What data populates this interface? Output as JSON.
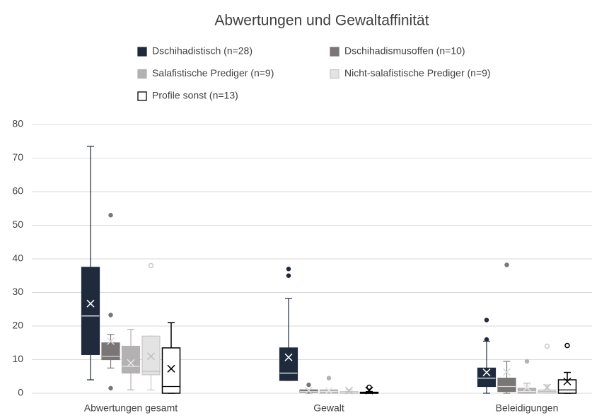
{
  "chart_data": {
    "type": "box",
    "title": "Abwertungen und Gewaltaffinität",
    "categories": [
      "Abwertungen gesamt",
      "Gewalt",
      "Beleidigungen"
    ],
    "ylim": [
      0,
      80
    ],
    "yticks": [
      0,
      10,
      20,
      30,
      40,
      50,
      60,
      70,
      80
    ],
    "grid": true,
    "series": [
      {
        "name": "Dschihadistisch (n=28)",
        "color": "#1f2a3d",
        "edge_color": "#1f2a3d",
        "inner_color": "#ffffff",
        "low": [
          4,
          3.8,
          0
        ],
        "q1": [
          11.5,
          3.8,
          2
        ],
        "median": [
          23,
          6,
          4.5
        ],
        "q3": [
          37.5,
          13.5,
          7.5
        ],
        "high": [
          73.5,
          28.2,
          15.5
        ],
        "mean": [
          26.7,
          10.7,
          6.2
        ],
        "outliers": [
          [],
          [
            35,
            37
          ],
          [
            16,
            21.8
          ]
        ]
      },
      {
        "name": "Dschihadismusoffen (n=10)",
        "color": "#7b7676",
        "edge_color": "#7b7676",
        "inner_color": "#d9d9d9",
        "low": [
          7.5,
          0,
          0
        ],
        "q1": [
          10,
          0.3,
          0.5
        ],
        "median": [
          11,
          0.5,
          2
        ],
        "q3": [
          15,
          1,
          4.5
        ],
        "high": [
          17.5,
          1,
          9.5
        ],
        "mean": [
          15.5,
          0.8,
          6.3
        ],
        "outliers": [
          [
            1.5,
            23.3,
            53
          ],
          [
            2.5
          ],
          [
            38.2
          ]
        ]
      },
      {
        "name": "Salafistische Prediger (n=9)",
        "color": "#b3b1b1",
        "edge_color": "#b3b1b1",
        "inner_color": "#e8e8e8",
        "low": [
          1,
          0,
          0
        ],
        "q1": [
          6,
          0,
          0
        ],
        "median": [
          8,
          0.5,
          0.5
        ],
        "q3": [
          14,
          1,
          1.5
        ],
        "high": [
          19,
          1,
          3
        ],
        "mean": [
          9,
          0.8,
          1.7
        ],
        "outliers": [
          [],
          [
            4.5
          ],
          [
            9.5
          ]
        ]
      },
      {
        "name": "Nicht-salafistische Prediger (n=9)",
        "color": "#e3e3e3",
        "edge_color": "#c8c8c8",
        "inner_color": "#c0c0c0",
        "low": [
          1,
          0,
          0
        ],
        "q1": [
          5.5,
          0,
          0
        ],
        "median": [
          6.5,
          0,
          0.5
        ],
        "q3": [
          17,
          0.5,
          1
        ],
        "high": [
          17,
          1,
          2.5
        ],
        "mean": [
          11,
          0.8,
          1.7
        ],
        "outliers": [
          [
            38
          ],
          [],
          [
            14
          ]
        ]
      },
      {
        "name": "Profile sonst (n=13)",
        "color": "#ffffff",
        "edge_color": "#000000",
        "inner_color": "#000000",
        "low": [
          0,
          0,
          0
        ],
        "q1": [
          0,
          0,
          0
        ],
        "median": [
          2,
          0,
          1
        ],
        "q3": [
          13.5,
          0.3,
          4
        ],
        "high": [
          21,
          0.5,
          6.2
        ],
        "mean": [
          7.3,
          0.8,
          3.5
        ],
        "outliers": [
          [],
          [
            1.8
          ],
          [
            14.2
          ]
        ]
      }
    ]
  }
}
